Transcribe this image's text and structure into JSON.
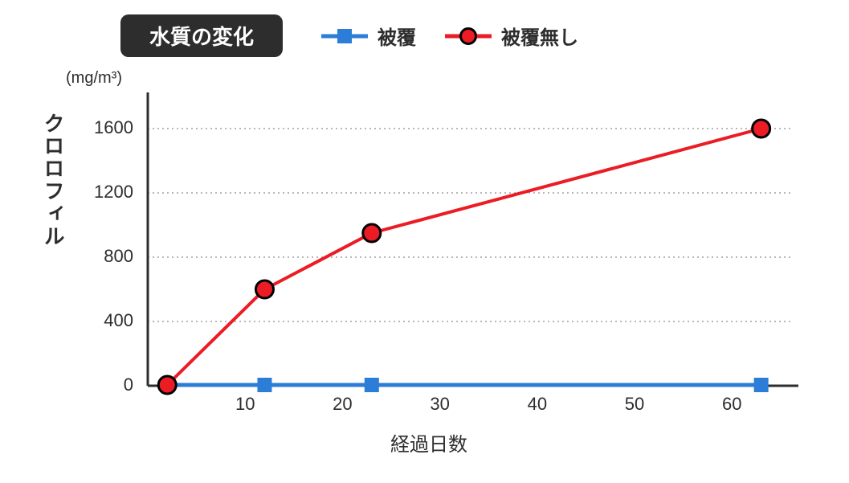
{
  "title": "水質の変化",
  "y_unit": "(mg/m³)",
  "y_label": "クロロフィル",
  "x_label": "経過日数",
  "chart": {
    "type": "line",
    "background_color": "#ffffff",
    "grid_color": "#a0a0a0",
    "grid_dash": "2,4",
    "axis_color": "#2d2d2d",
    "axis_width": 3,
    "xlim": [
      0,
      66
    ],
    "ylim": [
      0,
      1800
    ],
    "x_ticks": [
      10,
      20,
      30,
      40,
      50,
      60
    ],
    "y_ticks": [
      0,
      400,
      800,
      1200,
      1600
    ],
    "tick_fontsize": 22,
    "tick_color": "#2d2d2d",
    "series": [
      {
        "name": "被覆",
        "color": "#2b7dd8",
        "marker": "square",
        "marker_size": 18,
        "marker_fill": "#2b7dd8",
        "marker_stroke": "none",
        "line_width": 5,
        "data": [
          {
            "x": 2,
            "y": 5
          },
          {
            "x": 12,
            "y": 5
          },
          {
            "x": 23,
            "y": 5
          },
          {
            "x": 63,
            "y": 5
          }
        ]
      },
      {
        "name": "被覆無し",
        "color": "#eb1c24",
        "marker": "circle",
        "marker_size": 22,
        "marker_fill": "#eb1c24",
        "marker_stroke": "#000000",
        "marker_stroke_width": 3,
        "line_width": 4,
        "data": [
          {
            "x": 2,
            "y": 5
          },
          {
            "x": 12,
            "y": 600
          },
          {
            "x": 23,
            "y": 950
          },
          {
            "x": 63,
            "y": 1600
          }
        ]
      }
    ]
  },
  "legend": {
    "items": [
      {
        "label": "被覆",
        "series_index": 0
      },
      {
        "label": "被覆無し",
        "series_index": 1
      }
    ]
  }
}
